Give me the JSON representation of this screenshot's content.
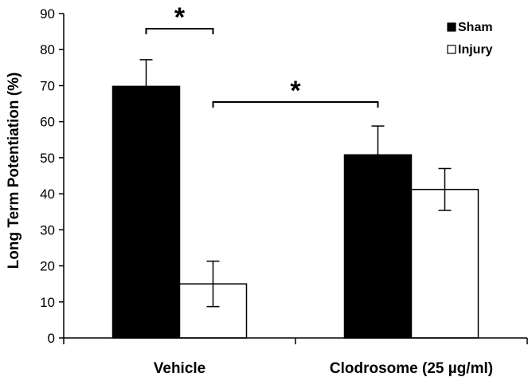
{
  "chart_data": {
    "type": "bar",
    "title": "",
    "xlabel": "",
    "ylabel": "Long Term Potentiation (%)",
    "ylim": [
      0,
      90
    ],
    "yticks": [
      0,
      10,
      20,
      30,
      40,
      50,
      60,
      70,
      80,
      90
    ],
    "categories": [
      "Vehicle",
      "Clodrosome (25 µg/ml)"
    ],
    "series": [
      {
        "name": "Sham",
        "color": "#000000",
        "values": [
          69.8,
          50.8
        ],
        "errors": [
          7.4,
          8.0
        ]
      },
      {
        "name": "Injury",
        "color": "#ffffff",
        "values": [
          15.0,
          41.2
        ],
        "errors": [
          6.3,
          5.8
        ]
      }
    ],
    "legend_position": "top-right",
    "grid": false,
    "significance": [
      {
        "label": "*",
        "from": {
          "category": 0,
          "series": 0
        },
        "to": {
          "category": 0,
          "series": 1
        }
      },
      {
        "label": "*",
        "from": {
          "category": 0,
          "series": 1
        },
        "to": {
          "category": 1,
          "series": 0
        }
      }
    ]
  }
}
